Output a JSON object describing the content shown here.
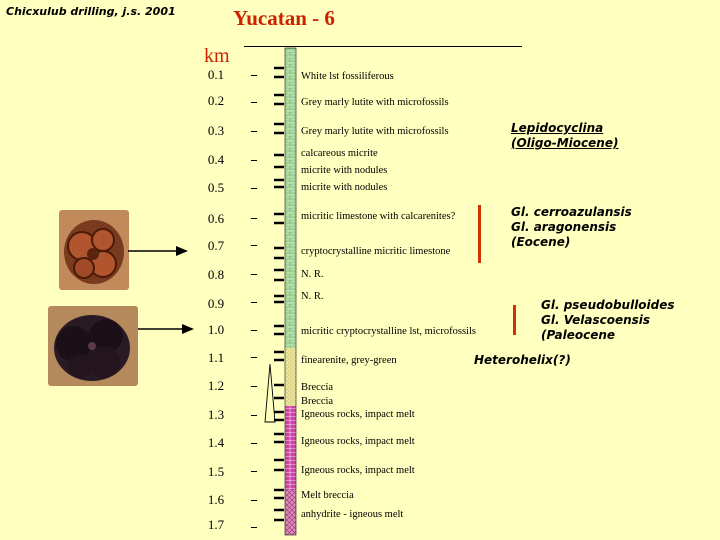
{
  "header": {
    "credit": "Chicxulub drilling, j.s. 2001",
    "title": "Yucatan - 6",
    "unit": "km"
  },
  "depths": [
    "0.1",
    "0.2",
    "0.3",
    "0.4",
    "0.5",
    "0.6",
    "0.7",
    "0.8",
    "0.9",
    "1.0",
    "1.1",
    "1.2",
    "1.3",
    "1.4",
    "1.5",
    "1.6",
    "1.7"
  ],
  "lithology": [
    "White lst fossiliferous",
    "Grey marly lutite with microfossils",
    "Grey marly lutite with microfossils",
    "calcareous micrite",
    "micrite with nodules",
    "micrite with nodules",
    "micritic limestone with calcarenites?",
    "cryptocrystalline micritic limestone",
    "N. R.",
    "N. R.",
    "micritic cryptocrystalline lst, microfossils",
    "finearenite, grey-green",
    "Breccia",
    "Breccia",
    "Igneous rocks, impact melt",
    "Igneous rocks, impact melt",
    "Igneous rocks, impact melt",
    "Melt breccia",
    "anhydrite - igneous melt"
  ],
  "fossils": {
    "oligo_miocene": [
      "Lepidocyclina",
      "(Oligo-Miocene)"
    ],
    "eocene": [
      "Gl. cerroazulansis",
      "Gl. aragonensis",
      "(Eocene)"
    ],
    "paleocene": [
      "Gl. pseudobulloides",
      "Gl. Velascoensis",
      "(Paleocene"
    ],
    "heterohelix": "Heterohelix(?)"
  },
  "colors": {
    "background": "#ffffc0",
    "title_red": "#cc2200",
    "upper_column": "#a8dca8",
    "middle_column": "#e8e098",
    "lower_column": "#cc3399"
  }
}
